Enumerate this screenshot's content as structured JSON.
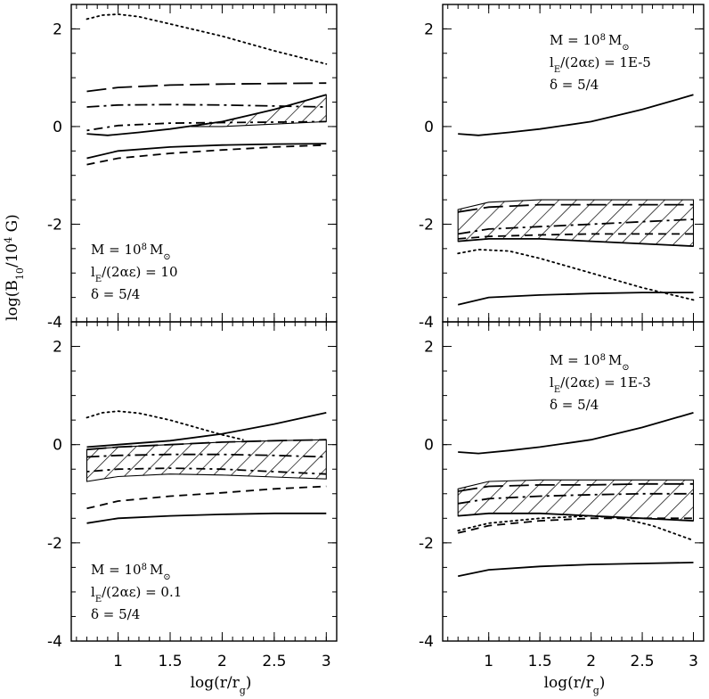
{
  "chart_data": [
    {
      "type": "line",
      "ylabel": "log(B10/10^4 G)",
      "xlabel": "",
      "xlim": [
        0.55,
        3.1
      ],
      "ylim": [
        -4,
        2.5
      ],
      "xticks": [
        1,
        1.5,
        2,
        2.5,
        3
      ],
      "yticks": [
        2,
        0,
        -2,
        -4
      ],
      "xtick_labels": [],
      "ytick_labels": [
        "2",
        "0",
        "-2",
        "-4"
      ],
      "annotation": [
        "M = 10^8 M⊙",
        "lE/(2αε) = 10",
        "δ = 5/4"
      ],
      "series": [
        {
          "style": "dotted",
          "x": [
            0.7,
            0.85,
            1.0,
            1.2,
            1.5,
            2.0,
            2.5,
            3.0
          ],
          "y": [
            2.2,
            2.28,
            2.3,
            2.25,
            2.1,
            1.85,
            1.55,
            1.28
          ]
        },
        {
          "style": "long-dash",
          "x": [
            0.7,
            1.0,
            1.5,
            2.0,
            2.5,
            3.0
          ],
          "y": [
            0.72,
            0.8,
            0.85,
            0.87,
            0.88,
            0.89
          ]
        },
        {
          "style": "dash-dot",
          "x": [
            0.7,
            1.0,
            1.5,
            2.0,
            2.5,
            3.0
          ],
          "y": [
            0.4,
            0.44,
            0.45,
            0.44,
            0.42,
            0.4
          ]
        },
        {
          "style": "dot-dash",
          "x": [
            0.7,
            1.0,
            1.5,
            2.0,
            2.5,
            3.0
          ],
          "y": [
            -0.08,
            0.02,
            0.07,
            0.08,
            0.09,
            0.1
          ]
        },
        {
          "style": "solid",
          "x": [
            0.7,
            0.9,
            1.2,
            1.5,
            2.0,
            2.5,
            3.0
          ],
          "y": [
            -0.15,
            -0.18,
            -0.12,
            -0.05,
            0.1,
            0.35,
            0.65
          ]
        },
        {
          "style": "solid",
          "x": [
            0.7,
            1.0,
            1.5,
            2.0,
            2.5,
            3.0
          ],
          "y": [
            -0.65,
            -0.5,
            -0.42,
            -0.38,
            -0.36,
            -0.35
          ]
        },
        {
          "style": "dashed",
          "x": [
            0.7,
            1.0,
            1.5,
            2.0,
            2.5,
            3.0
          ],
          "y": [
            -0.78,
            -0.65,
            -0.55,
            -0.48,
            -0.42,
            -0.38
          ]
        }
      ],
      "bands": [
        {
          "x": [
            1.7,
            2.0,
            2.5,
            3.0
          ],
          "upper": [
            0.0,
            0.1,
            0.35,
            0.65
          ],
          "lower": [
            0.0,
            0.0,
            0.05,
            0.1
          ]
        }
      ]
    },
    {
      "type": "line",
      "ylabel": "",
      "xlabel": "",
      "xlim": [
        0.55,
        3.1
      ],
      "ylim": [
        -4,
        2.5
      ],
      "xticks": [
        1,
        1.5,
        2,
        2.5,
        3
      ],
      "yticks": [
        2,
        0,
        -2,
        -4
      ],
      "xtick_labels": [],
      "ytick_labels": [
        "2",
        "0",
        "-2",
        "-4"
      ],
      "annotation": [
        "M = 10^8 M⊙",
        "lE/(2αε) = 1E-5",
        "δ = 5/4"
      ],
      "series": [
        {
          "style": "solid",
          "x": [
            0.7,
            0.9,
            1.2,
            1.5,
            2.0,
            2.5,
            3.0
          ],
          "y": [
            -0.15,
            -0.18,
            -0.12,
            -0.05,
            0.1,
            0.35,
            0.65
          ]
        },
        {
          "style": "long-dash",
          "x": [
            0.7,
            1.0,
            1.5,
            2.0,
            2.5,
            3.0
          ],
          "y": [
            -1.75,
            -1.65,
            -1.6,
            -1.6,
            -1.6,
            -1.6
          ]
        },
        {
          "style": "dash-dot",
          "x": [
            0.7,
            1.0,
            1.5,
            2.0,
            2.5,
            3.0
          ],
          "y": [
            -2.2,
            -2.1,
            -2.05,
            -2.0,
            -1.95,
            -1.9
          ]
        },
        {
          "style": "dashed",
          "x": [
            0.7,
            1.0,
            1.5,
            2.0,
            2.5,
            3.0
          ],
          "y": [
            -2.3,
            -2.25,
            -2.22,
            -2.2,
            -2.2,
            -2.2
          ]
        },
        {
          "style": "solid",
          "x": [
            0.7,
            1.0,
            1.5,
            2.0,
            2.5,
            3.0
          ],
          "y": [
            -2.35,
            -2.3,
            -2.3,
            -2.35,
            -2.4,
            -2.45
          ]
        },
        {
          "style": "dotted",
          "x": [
            0.7,
            0.9,
            1.2,
            1.5,
            2.0,
            2.5,
            3.0
          ],
          "y": [
            -2.6,
            -2.52,
            -2.55,
            -2.7,
            -3.0,
            -3.3,
            -3.55
          ]
        },
        {
          "style": "solid",
          "x": [
            0.7,
            1.0,
            1.5,
            2.0,
            2.5,
            3.0
          ],
          "y": [
            -3.65,
            -3.5,
            -3.45,
            -3.42,
            -3.4,
            -3.4
          ]
        }
      ],
      "bands": [
        {
          "x": [
            0.7,
            1.0,
            1.5,
            2.0,
            2.5,
            3.0
          ],
          "upper": [
            -1.7,
            -1.55,
            -1.5,
            -1.5,
            -1.5,
            -1.5
          ],
          "lower": [
            -2.35,
            -2.3,
            -2.3,
            -2.35,
            -2.4,
            -2.45
          ]
        }
      ]
    },
    {
      "type": "line",
      "ylabel": "",
      "xlabel": "log(r/rg)",
      "xlim": [
        0.55,
        3.1
      ],
      "ylim": [
        -4,
        2.5
      ],
      "xticks": [
        1,
        1.5,
        2,
        2.5,
        3
      ],
      "yticks": [
        2,
        0,
        -2,
        -4
      ],
      "xtick_labels": [
        "1",
        "1.5",
        "2",
        "2.5",
        "3"
      ],
      "ytick_labels": [
        "2",
        "0",
        "-2",
        "-4"
      ],
      "annotation": [
        "M = 10^8 M⊙",
        "lE/(2αε) = 0.1",
        "δ = 5/4"
      ],
      "series": [
        {
          "style": "dotted",
          "x": [
            0.7,
            0.85,
            1.0,
            1.2,
            1.5,
            1.8,
            2.0,
            2.2
          ],
          "y": [
            0.55,
            0.65,
            0.68,
            0.64,
            0.5,
            0.32,
            0.2,
            0.1
          ]
        },
        {
          "style": "solid",
          "x": [
            0.7,
            1.0,
            1.5,
            2.0,
            2.5,
            3.0
          ],
          "y": [
            -0.05,
            0.0,
            0.08,
            0.22,
            0.42,
            0.65
          ]
        },
        {
          "style": "long-dash",
          "x": [
            0.7,
            1.0,
            1.5,
            2.0,
            2.5,
            3.0
          ],
          "y": [
            -0.1,
            -0.05,
            0.0,
            0.05,
            0.08,
            0.1
          ]
        },
        {
          "style": "dash-dot",
          "x": [
            0.7,
            1.0,
            1.5,
            2.0,
            2.5,
            3.0
          ],
          "y": [
            -0.25,
            -0.22,
            -0.2,
            -0.2,
            -0.22,
            -0.25
          ]
        },
        {
          "style": "dot-dash",
          "x": [
            0.7,
            1.0,
            1.5,
            2.0,
            2.5,
            3.0
          ],
          "y": [
            -0.55,
            -0.5,
            -0.48,
            -0.5,
            -0.55,
            -0.6
          ]
        },
        {
          "style": "dashed",
          "x": [
            0.7,
            1.0,
            1.5,
            2.0,
            2.5,
            3.0
          ],
          "y": [
            -1.3,
            -1.15,
            -1.05,
            -0.98,
            -0.9,
            -0.85
          ]
        },
        {
          "style": "solid",
          "x": [
            0.7,
            1.0,
            1.5,
            2.0,
            2.5,
            3.0
          ],
          "y": [
            -1.6,
            -1.5,
            -1.45,
            -1.42,
            -1.4,
            -1.4
          ]
        }
      ],
      "bands": [
        {
          "x": [
            0.7,
            1.0,
            1.5,
            2.0,
            2.5,
            3.0
          ],
          "upper": [
            -0.1,
            -0.05,
            0.0,
            0.05,
            0.08,
            0.1
          ],
          "lower": [
            -0.75,
            -0.65,
            -0.6,
            -0.62,
            -0.66,
            -0.7
          ]
        }
      ]
    },
    {
      "type": "line",
      "ylabel": "",
      "xlabel": "log(r/rg)",
      "xlim": [
        0.55,
        3.1
      ],
      "ylim": [
        -4,
        2.5
      ],
      "xticks": [
        1,
        1.5,
        2,
        2.5,
        3
      ],
      "yticks": [
        2,
        0,
        -2,
        -4
      ],
      "xtick_labels": [
        "1",
        "1.5",
        "2",
        "2.5",
        "3"
      ],
      "ytick_labels": [
        "2",
        "0",
        "-2",
        "-4"
      ],
      "annotation": [
        "M = 10^8 M⊙",
        "lE/(2αε) = 1E-3",
        "δ = 5/4"
      ],
      "series": [
        {
          "style": "solid",
          "x": [
            0.7,
            0.9,
            1.2,
            1.5,
            2.0,
            2.5,
            3.0
          ],
          "y": [
            -0.15,
            -0.18,
            -0.12,
            -0.05,
            0.1,
            0.35,
            0.65
          ]
        },
        {
          "style": "long-dash",
          "x": [
            0.7,
            1.0,
            1.5,
            2.0,
            2.5,
            3.0
          ],
          "y": [
            -0.95,
            -0.85,
            -0.82,
            -0.82,
            -0.8,
            -0.8
          ]
        },
        {
          "style": "dash-dot",
          "x": [
            0.7,
            1.0,
            1.5,
            2.0,
            2.5,
            3.0
          ],
          "y": [
            -1.2,
            -1.1,
            -1.05,
            -1.02,
            -1.0,
            -1.0
          ]
        },
        {
          "style": "solid",
          "x": [
            0.7,
            1.0,
            1.5,
            2.0,
            2.5,
            3.0
          ],
          "y": [
            -1.45,
            -1.4,
            -1.4,
            -1.45,
            -1.5,
            -1.55
          ]
        },
        {
          "style": "dashed",
          "x": [
            0.7,
            1.0,
            1.5,
            2.0,
            2.5,
            3.0
          ],
          "y": [
            -1.8,
            -1.65,
            -1.55,
            -1.5,
            -1.5,
            -1.5
          ]
        },
        {
          "style": "dotted",
          "x": [
            0.7,
            1.0,
            1.5,
            2.0,
            2.3,
            2.6,
            3.0
          ],
          "y": [
            -1.75,
            -1.6,
            -1.5,
            -1.45,
            -1.5,
            -1.65,
            -1.95
          ]
        },
        {
          "style": "solid",
          "x": [
            0.7,
            1.0,
            1.5,
            2.0,
            2.5,
            3.0
          ],
          "y": [
            -2.68,
            -2.55,
            -2.48,
            -2.44,
            -2.42,
            -2.4
          ]
        }
      ],
      "bands": [
        {
          "x": [
            0.7,
            1.0,
            1.5,
            2.0,
            2.5,
            3.0
          ],
          "upper": [
            -0.9,
            -0.75,
            -0.72,
            -0.72,
            -0.72,
            -0.72
          ],
          "lower": [
            -1.45,
            -1.4,
            -1.4,
            -1.45,
            -1.5,
            -1.55
          ]
        }
      ]
    }
  ],
  "y_axis_label": "log(B10/10^4 G)",
  "x_axis_label": "log(r/rg)"
}
